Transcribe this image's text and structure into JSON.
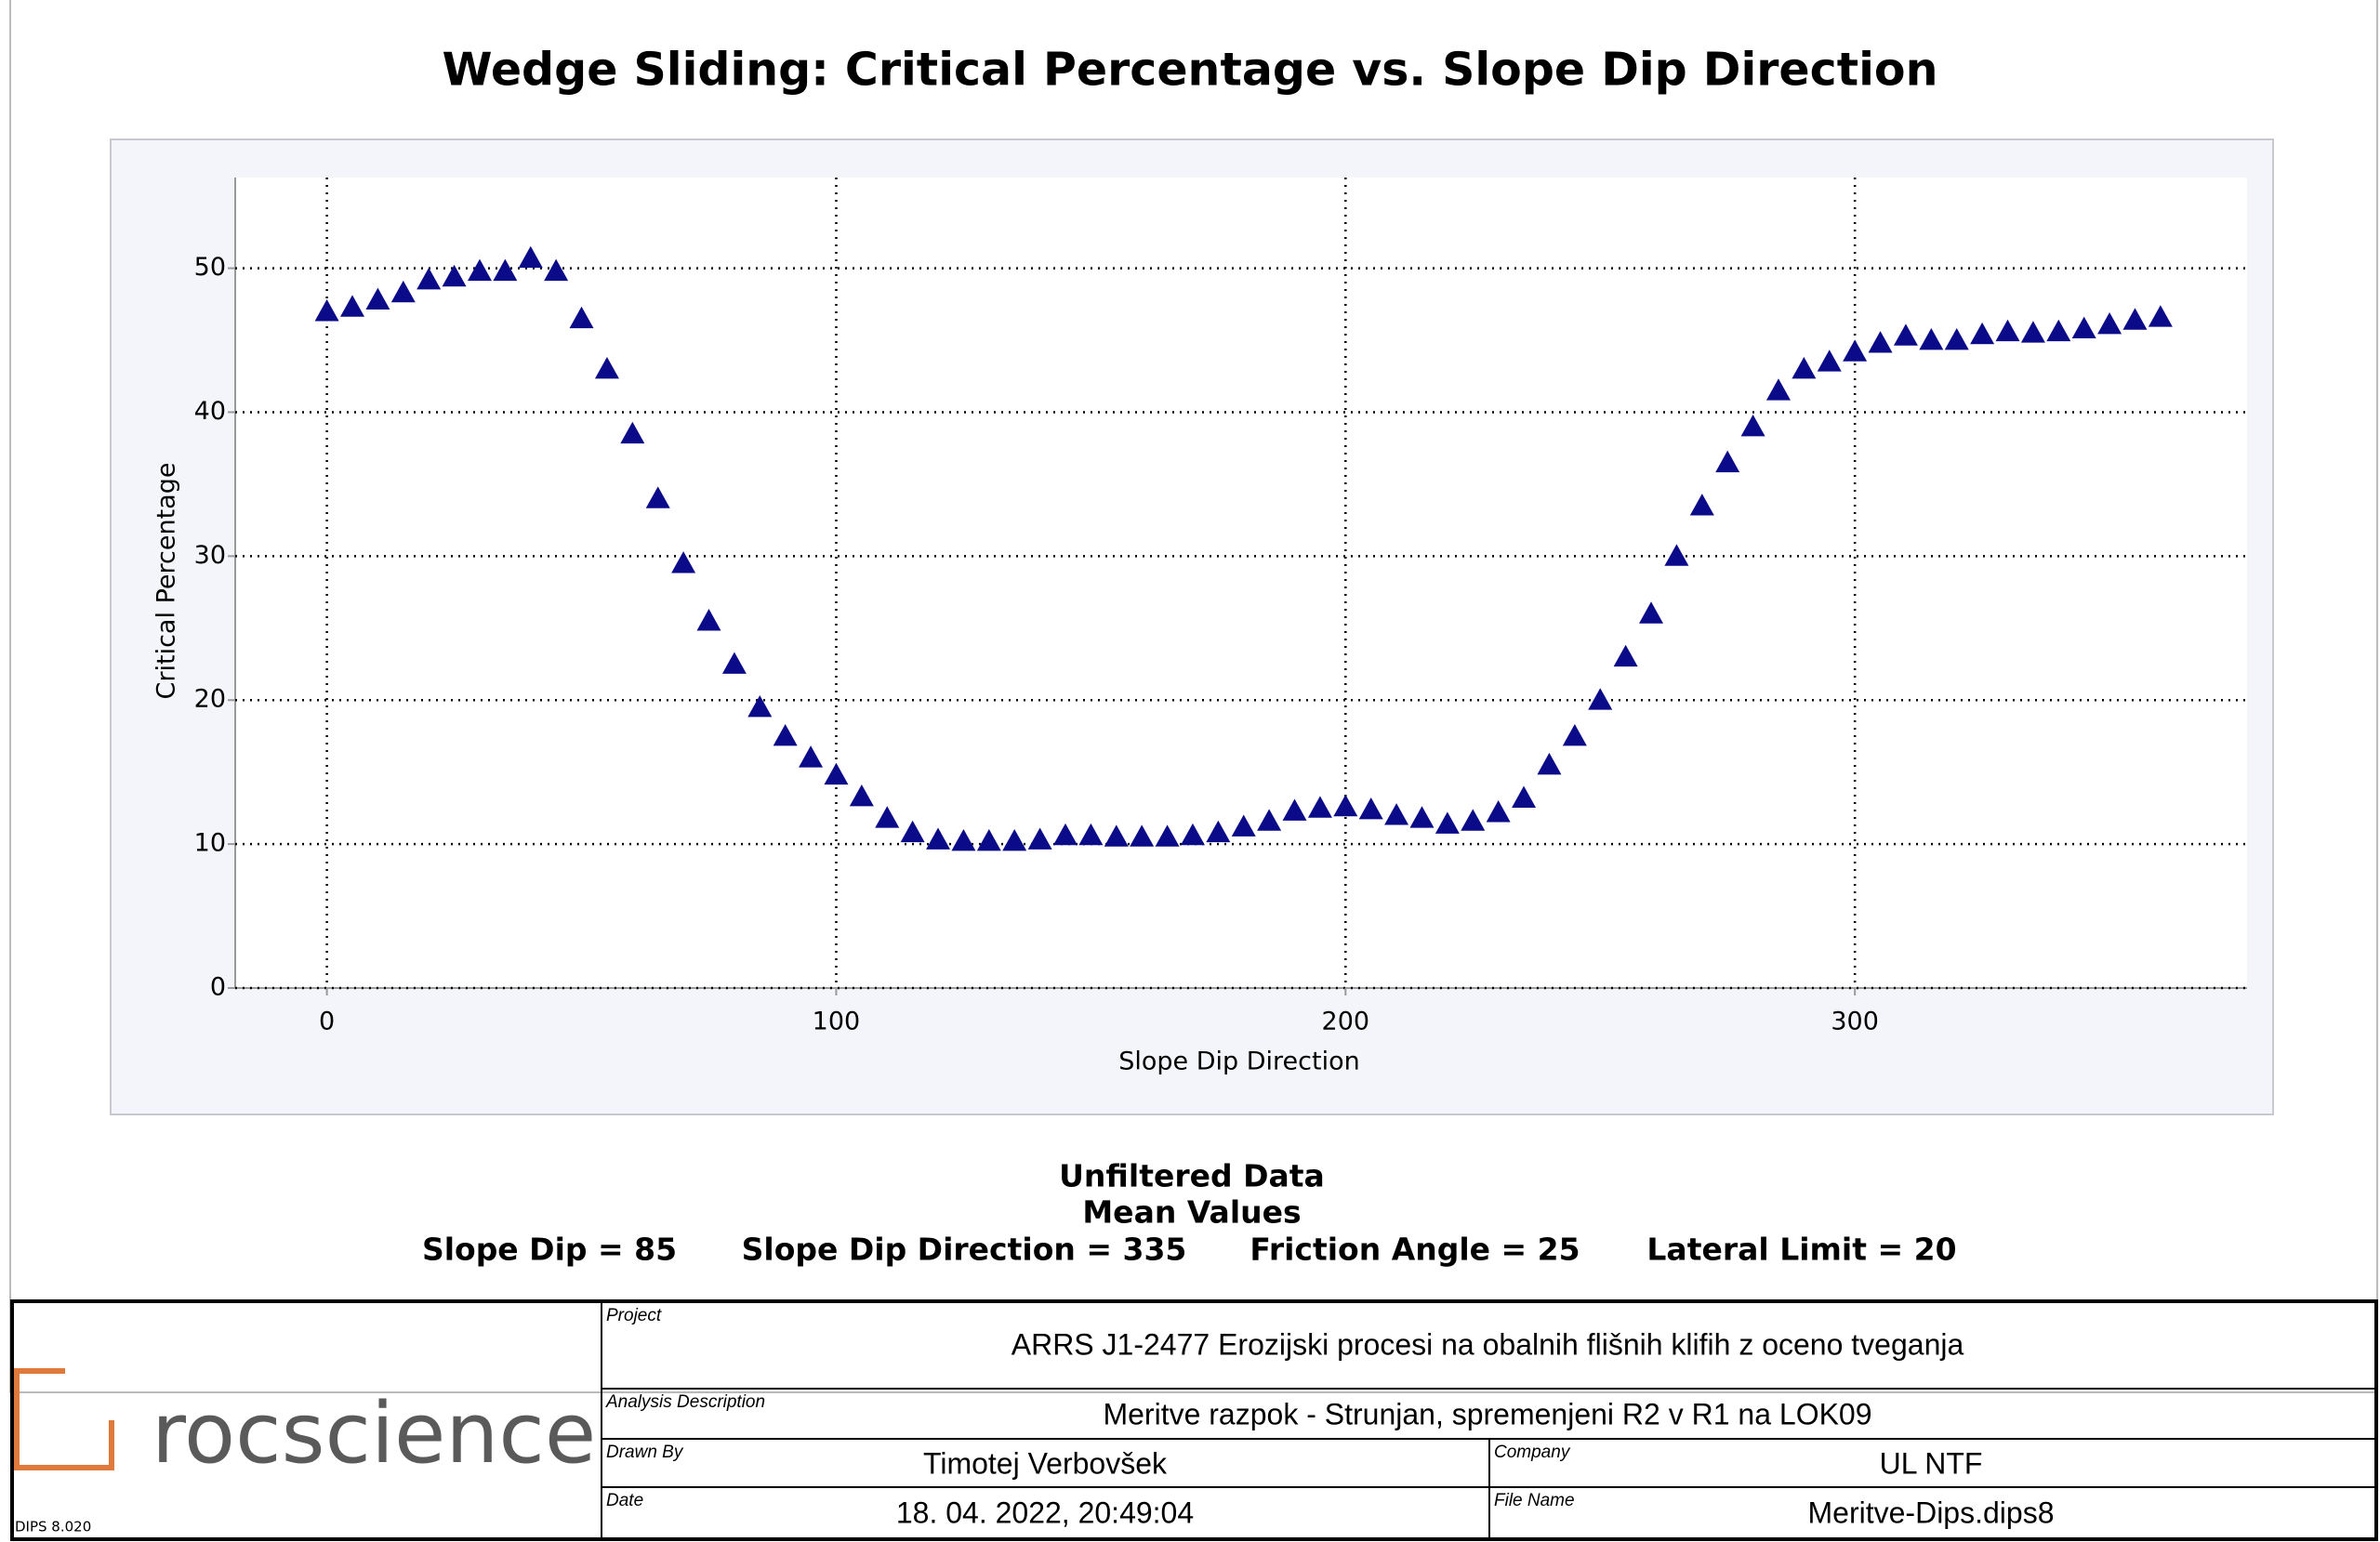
{
  "chart_data": {
    "type": "scatter",
    "title": "Wedge Sliding: Critical Percentage vs. Slope Dip Direction",
    "x_label": "Slope Dip Direction",
    "y_label": "Critical Percentage",
    "color": "#0b0b8a",
    "marker": "triangle",
    "x": [
      0,
      5,
      10,
      15,
      20,
      25,
      30,
      35,
      40,
      45,
      50,
      55,
      60,
      65,
      70,
      75,
      80,
      85,
      90,
      95,
      100,
      105,
      110,
      115,
      120,
      125,
      130,
      135,
      140,
      145,
      150,
      155,
      160,
      165,
      170,
      175,
      180,
      185,
      190,
      195,
      200,
      205,
      210,
      215,
      220,
      225,
      230,
      235,
      240,
      245,
      250,
      255,
      260,
      265,
      270,
      275,
      280,
      285,
      290,
      295,
      300,
      305,
      310,
      315,
      320,
      325,
      330,
      335,
      340,
      345,
      350,
      355,
      360
    ],
    "values": [
      47,
      47.3,
      47.8,
      48.3,
      49.2,
      49.4,
      49.8,
      49.8,
      50.7,
      49.8,
      46.5,
      43,
      38.5,
      34,
      29.5,
      25.5,
      22.5,
      19.5,
      17.5,
      16,
      14.8,
      13.3,
      11.8,
      10.8,
      10.3,
      10.2,
      10.2,
      10.2,
      10.3,
      10.6,
      10.6,
      10.5,
      10.5,
      10.5,
      10.6,
      10.8,
      11.2,
      11.6,
      12.3,
      12.5,
      12.6,
      12.4,
      12,
      11.8,
      11.4,
      11.6,
      12.2,
      13.2,
      15.5,
      17.5,
      20,
      23,
      26,
      30,
      33.5,
      36.5,
      39,
      41.5,
      43,
      43.5,
      44.2,
      44.8,
      45.3,
      45,
      45,
      45.4,
      45.6,
      45.5,
      45.6,
      45.8,
      46.1,
      46.4,
      46.6
    ],
    "xlim": [
      -18,
      377
    ],
    "xticks": [
      0,
      100,
      200,
      300
    ],
    "ylim": [
      0,
      56.3
    ],
    "yticks": [
      0,
      10,
      20,
      30,
      40,
      50
    ],
    "grid": true
  },
  "info": {
    "line1": "Unfiltered Data",
    "line2": "Mean Values",
    "params": [
      "Slope Dip = 85",
      "Slope Dip Direction = 335",
      "Friction Angle = 25",
      "Lateral Limit = 20"
    ]
  },
  "title_block": {
    "logo": "rocscience",
    "version": "DIPS 8.020",
    "project_label": "Project",
    "project": "ARRS J1-2477 Erozijski procesi na obalnih flišnih klifih z oceno tveganja",
    "analysis_label": "Analysis Description",
    "analysis": "Meritve razpok - Strunjan, spremenjeni R2 v R1 na LOK09",
    "drawn_label": "Drawn By",
    "drawn": "Timotej Verbovšek",
    "company_label": "Company",
    "company": "UL NTF",
    "date_label": "Date",
    "date": "18. 04. 2022, 20:49:04",
    "file_label": "File Name",
    "file": "Meritve-Dips.dips8"
  }
}
